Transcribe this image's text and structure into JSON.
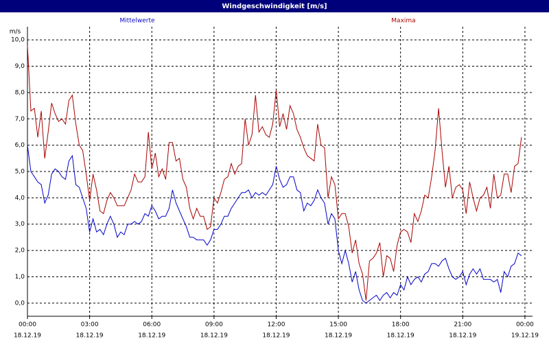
{
  "chart_data": {
    "type": "line",
    "title": "Windgeschwindigkeit [m/s]",
    "y_label": "m/s",
    "x": [
      0,
      10,
      20,
      30,
      40,
      50,
      60,
      70,
      80,
      90,
      100,
      110,
      120,
      130,
      140,
      150,
      160,
      170,
      180,
      190,
      200,
      210,
      220,
      230,
      240,
      250,
      260,
      270,
      280,
      290,
      300,
      310,
      320,
      330,
      340,
      350,
      360,
      370,
      380,
      390,
      400,
      410,
      420,
      430,
      440,
      450,
      460,
      470,
      480,
      490,
      500,
      510,
      520,
      530,
      540,
      550,
      560,
      570,
      580,
      590,
      600,
      610,
      620,
      630,
      640,
      650,
      660,
      670,
      680,
      690,
      700,
      710,
      720,
      730,
      740,
      750,
      760,
      770,
      780,
      790,
      800,
      810,
      820,
      830,
      840,
      850,
      860,
      870,
      880,
      890,
      900,
      910,
      920,
      930,
      940,
      950,
      960,
      970,
      980,
      990,
      1000,
      1010,
      1020,
      1030,
      1040,
      1050,
      1060,
      1070,
      1080,
      1090,
      1100,
      1110,
      1120,
      1130,
      1140,
      1150,
      1160,
      1170,
      1180,
      1190,
      1200,
      1210,
      1220,
      1230,
      1240,
      1250,
      1260,
      1270,
      1280,
      1290,
      1300,
      1310,
      1320,
      1330,
      1340,
      1350,
      1360,
      1370,
      1380,
      1390,
      1400,
      1410,
      1420,
      1430
    ],
    "series": [
      {
        "name": "Mittelwerte",
        "color": "#0000c8",
        "values": [
          6.0,
          5.0,
          4.8,
          4.6,
          4.5,
          3.8,
          4.1,
          4.9,
          5.1,
          5.0,
          4.8,
          4.7,
          5.4,
          5.6,
          4.5,
          4.4,
          4.0,
          3.6,
          2.7,
          3.2,
          2.7,
          2.8,
          2.6,
          3.0,
          3.3,
          3.0,
          2.5,
          2.7,
          2.6,
          3.0,
          3.0,
          3.1,
          3.0,
          3.1,
          3.4,
          3.3,
          3.7,
          3.5,
          3.2,
          3.3,
          3.3,
          3.6,
          4.3,
          3.8,
          3.5,
          3.2,
          2.9,
          2.5,
          2.5,
          2.4,
          2.4,
          2.4,
          2.2,
          2.4,
          2.8,
          2.8,
          3.0,
          3.3,
          3.3,
          3.6,
          3.8,
          4.0,
          4.2,
          4.2,
          4.3,
          4.0,
          4.2,
          4.1,
          4.2,
          4.1,
          4.3,
          4.5,
          5.2,
          4.7,
          4.4,
          4.5,
          4.8,
          4.8,
          4.3,
          4.2,
          3.5,
          3.8,
          3.7,
          3.9,
          4.3,
          4.0,
          3.8,
          3.0,
          3.4,
          3.2,
          2.0,
          1.5,
          2.0,
          1.5,
          0.8,
          1.2,
          0.5,
          0.1,
          0.0,
          0.1,
          0.2,
          0.3,
          0.1,
          0.3,
          0.4,
          0.2,
          0.4,
          0.3,
          0.7,
          0.5,
          1.0,
          0.7,
          0.9,
          1.0,
          0.8,
          1.1,
          1.2,
          1.5,
          1.5,
          1.4,
          1.6,
          1.7,
          1.3,
          1.0,
          0.9,
          1.0,
          1.2,
          0.7,
          1.1,
          1.3,
          1.1,
          1.3,
          0.9,
          0.9,
          0.9,
          0.8,
          0.9,
          0.4,
          1.2,
          1.0,
          1.4,
          1.5,
          1.9,
          1.8
        ]
      },
      {
        "name": "Maxima",
        "color": "#a80000",
        "values": [
          9.8,
          7.3,
          7.4,
          6.3,
          7.3,
          5.5,
          6.5,
          7.6,
          7.2,
          6.9,
          7.0,
          6.8,
          7.7,
          7.9,
          6.8,
          6.0,
          5.8,
          4.9,
          3.9,
          4.9,
          4.3,
          3.5,
          3.4,
          3.9,
          4.2,
          4.0,
          3.7,
          3.7,
          3.7,
          4.0,
          4.3,
          4.9,
          4.6,
          4.6,
          4.8,
          6.5,
          5.1,
          5.7,
          4.8,
          5.1,
          4.7,
          6.1,
          6.1,
          5.4,
          5.5,
          4.7,
          4.4,
          3.6,
          3.2,
          3.6,
          3.3,
          3.3,
          2.8,
          2.9,
          4.0,
          3.8,
          4.2,
          4.7,
          4.8,
          5.3,
          4.9,
          5.2,
          5.3,
          7.0,
          6.0,
          6.4,
          7.9,
          6.5,
          6.7,
          6.4,
          6.3,
          6.8,
          8.1,
          6.7,
          7.2,
          6.6,
          7.5,
          7.2,
          6.6,
          6.3,
          5.9,
          5.6,
          5.5,
          5.4,
          6.8,
          6.0,
          5.9,
          4.0,
          4.8,
          4.5,
          3.2,
          3.4,
          3.4,
          2.9,
          1.9,
          2.4,
          1.5,
          1.1,
          0.1,
          1.6,
          1.7,
          1.9,
          2.3,
          1.0,
          1.8,
          1.7,
          1.2,
          2.2,
          2.7,
          2.8,
          2.7,
          2.3,
          3.4,
          3.1,
          3.5,
          4.1,
          4.0,
          4.8,
          5.8,
          7.4,
          5.8,
          4.4,
          5.2,
          4.0,
          4.4,
          4.5,
          4.3,
          3.4,
          4.6,
          4.0,
          3.5,
          4.0,
          4.1,
          4.4,
          3.6,
          4.9,
          4.0,
          4.1,
          4.9,
          4.9,
          4.2,
          5.2,
          5.3,
          6.3
        ]
      }
    ],
    "xlim": [
      0,
      1462
    ],
    "xticks": [
      {
        "value": 0,
        "label": "00:00",
        "date": "18.12.19"
      },
      {
        "value": 180,
        "label": "03:00",
        "date": "18.12.19"
      },
      {
        "value": 360,
        "label": "06:00",
        "date": "18.12.19"
      },
      {
        "value": 540,
        "label": "09:00",
        "date": "18.12.19"
      },
      {
        "value": 720,
        "label": "12:00",
        "date": "18.12.19"
      },
      {
        "value": 900,
        "label": "15:00",
        "date": "18.12.19"
      },
      {
        "value": 1080,
        "label": "18:00",
        "date": "18.12.19"
      },
      {
        "value": 1260,
        "label": "21:00",
        "date": "18.12.19"
      },
      {
        "value": 1440,
        "label": "00:00",
        "date": "19.12.19"
      }
    ],
    "ylim": [
      -0.5,
      10.5
    ],
    "yticks": [
      {
        "value": 0,
        "label": "0,0"
      },
      {
        "value": 1,
        "label": "1,0"
      },
      {
        "value": 2,
        "label": "2,0"
      },
      {
        "value": 3,
        "label": "3,0"
      },
      {
        "value": 4,
        "label": "4,0"
      },
      {
        "value": 5,
        "label": "5,0"
      },
      {
        "value": 6,
        "label": "6,0"
      },
      {
        "value": 7,
        "label": "7,0"
      },
      {
        "value": 8,
        "label": "8,0"
      },
      {
        "value": 9,
        "label": "9,0"
      },
      {
        "value": 10,
        "label": "10,0"
      }
    ],
    "grid": true
  }
}
